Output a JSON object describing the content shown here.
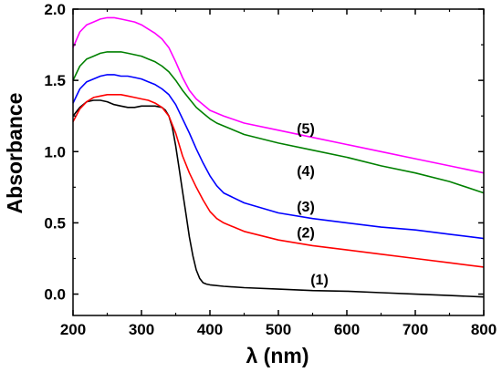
{
  "chart_data": {
    "type": "line",
    "xlabel": "λ (nm)",
    "ylabel": "Absorbance",
    "xlim": [
      200,
      800
    ],
    "ylim": [
      -0.15,
      2.0
    ],
    "xticks": [
      200,
      300,
      400,
      500,
      600,
      700,
      800
    ],
    "yticks": [
      0.0,
      0.5,
      1.0,
      1.5,
      2.0
    ],
    "xtick_labels": [
      "200",
      "300",
      "400",
      "500",
      "600",
      "700",
      "800"
    ],
    "ytick_labels": [
      "0.0",
      "0.5",
      "1.0",
      "1.5",
      "2.0"
    ],
    "grid": false,
    "legend": "none",
    "series": [
      {
        "label": "(1)",
        "label_at": [
          560,
          0.1
        ],
        "color": "#000000",
        "points": [
          [
            200,
            1.25
          ],
          [
            210,
            1.31
          ],
          [
            220,
            1.35
          ],
          [
            230,
            1.36
          ],
          [
            240,
            1.36
          ],
          [
            250,
            1.35
          ],
          [
            260,
            1.33
          ],
          [
            270,
            1.32
          ],
          [
            280,
            1.31
          ],
          [
            290,
            1.31
          ],
          [
            300,
            1.32
          ],
          [
            310,
            1.32
          ],
          [
            320,
            1.32
          ],
          [
            330,
            1.31
          ],
          [
            335,
            1.29
          ],
          [
            340,
            1.25
          ],
          [
            345,
            1.17
          ],
          [
            350,
            1.04
          ],
          [
            355,
            0.88
          ],
          [
            360,
            0.72
          ],
          [
            365,
            0.56
          ],
          [
            370,
            0.4
          ],
          [
            375,
            0.27
          ],
          [
            380,
            0.17
          ],
          [
            385,
            0.11
          ],
          [
            390,
            0.08
          ],
          [
            395,
            0.07
          ],
          [
            400,
            0.065
          ],
          [
            420,
            0.055
          ],
          [
            450,
            0.045
          ],
          [
            500,
            0.035
          ],
          [
            550,
            0.025
          ],
          [
            600,
            0.02
          ],
          [
            650,
            0.01
          ],
          [
            700,
            0.0
          ],
          [
            750,
            -0.01
          ],
          [
            800,
            -0.02
          ]
        ]
      },
      {
        "label": "(2)",
        "label_at": [
          540,
          0.43
        ],
        "color": "#ff0000",
        "points": [
          [
            200,
            1.21
          ],
          [
            210,
            1.3
          ],
          [
            220,
            1.35
          ],
          [
            230,
            1.38
          ],
          [
            240,
            1.39
          ],
          [
            250,
            1.4
          ],
          [
            260,
            1.4
          ],
          [
            270,
            1.4
          ],
          [
            280,
            1.39
          ],
          [
            290,
            1.38
          ],
          [
            300,
            1.37
          ],
          [
            310,
            1.36
          ],
          [
            320,
            1.34
          ],
          [
            330,
            1.31
          ],
          [
            340,
            1.25
          ],
          [
            350,
            1.13
          ],
          [
            360,
            0.97
          ],
          [
            370,
            0.85
          ],
          [
            380,
            0.75
          ],
          [
            390,
            0.66
          ],
          [
            400,
            0.58
          ],
          [
            410,
            0.53
          ],
          [
            420,
            0.5
          ],
          [
            450,
            0.44
          ],
          [
            500,
            0.38
          ],
          [
            550,
            0.34
          ],
          [
            600,
            0.31
          ],
          [
            650,
            0.28
          ],
          [
            700,
            0.25
          ],
          [
            750,
            0.22
          ],
          [
            800,
            0.19
          ]
        ]
      },
      {
        "label": "(3)",
        "label_at": [
          540,
          0.61
        ],
        "color": "#0000ff",
        "points": [
          [
            200,
            1.34
          ],
          [
            210,
            1.44
          ],
          [
            220,
            1.49
          ],
          [
            230,
            1.51
          ],
          [
            240,
            1.53
          ],
          [
            250,
            1.54
          ],
          [
            260,
            1.54
          ],
          [
            270,
            1.53
          ],
          [
            280,
            1.53
          ],
          [
            290,
            1.52
          ],
          [
            300,
            1.51
          ],
          [
            310,
            1.49
          ],
          [
            320,
            1.47
          ],
          [
            330,
            1.44
          ],
          [
            340,
            1.4
          ],
          [
            350,
            1.33
          ],
          [
            360,
            1.23
          ],
          [
            370,
            1.13
          ],
          [
            380,
            1.02
          ],
          [
            390,
            0.92
          ],
          [
            400,
            0.83
          ],
          [
            410,
            0.76
          ],
          [
            420,
            0.71
          ],
          [
            450,
            0.64
          ],
          [
            500,
            0.57
          ],
          [
            550,
            0.53
          ],
          [
            600,
            0.5
          ],
          [
            650,
            0.47
          ],
          [
            700,
            0.45
          ],
          [
            750,
            0.42
          ],
          [
            800,
            0.39
          ]
        ]
      },
      {
        "label": "(4)",
        "label_at": [
          540,
          0.86
        ],
        "color": "#008000",
        "points": [
          [
            200,
            1.5
          ],
          [
            210,
            1.6
          ],
          [
            220,
            1.65
          ],
          [
            230,
            1.67
          ],
          [
            240,
            1.69
          ],
          [
            250,
            1.7
          ],
          [
            260,
            1.7
          ],
          [
            270,
            1.7
          ],
          [
            280,
            1.69
          ],
          [
            290,
            1.68
          ],
          [
            300,
            1.67
          ],
          [
            310,
            1.65
          ],
          [
            320,
            1.63
          ],
          [
            330,
            1.6
          ],
          [
            340,
            1.56
          ],
          [
            350,
            1.5
          ],
          [
            360,
            1.43
          ],
          [
            370,
            1.37
          ],
          [
            380,
            1.31
          ],
          [
            390,
            1.27
          ],
          [
            400,
            1.23
          ],
          [
            410,
            1.2
          ],
          [
            420,
            1.18
          ],
          [
            450,
            1.12
          ],
          [
            500,
            1.06
          ],
          [
            550,
            1.01
          ],
          [
            600,
            0.96
          ],
          [
            650,
            0.9
          ],
          [
            700,
            0.85
          ],
          [
            750,
            0.79
          ],
          [
            800,
            0.71
          ]
        ]
      },
      {
        "label": "(5)",
        "label_at": [
          540,
          1.16
        ],
        "color": "#ff00ff",
        "points": [
          [
            200,
            1.73
          ],
          [
            210,
            1.84
          ],
          [
            220,
            1.89
          ],
          [
            230,
            1.91
          ],
          [
            240,
            1.93
          ],
          [
            250,
            1.94
          ],
          [
            260,
            1.94
          ],
          [
            270,
            1.93
          ],
          [
            280,
            1.92
          ],
          [
            290,
            1.91
          ],
          [
            300,
            1.89
          ],
          [
            310,
            1.86
          ],
          [
            320,
            1.83
          ],
          [
            330,
            1.79
          ],
          [
            340,
            1.73
          ],
          [
            350,
            1.63
          ],
          [
            360,
            1.52
          ],
          [
            370,
            1.43
          ],
          [
            380,
            1.37
          ],
          [
            390,
            1.33
          ],
          [
            400,
            1.29
          ],
          [
            410,
            1.27
          ],
          [
            420,
            1.25
          ],
          [
            450,
            1.2
          ],
          [
            500,
            1.15
          ],
          [
            550,
            1.1
          ],
          [
            600,
            1.05
          ],
          [
            650,
            1.0
          ],
          [
            700,
            0.95
          ],
          [
            750,
            0.9
          ],
          [
            800,
            0.85
          ]
        ]
      }
    ]
  }
}
